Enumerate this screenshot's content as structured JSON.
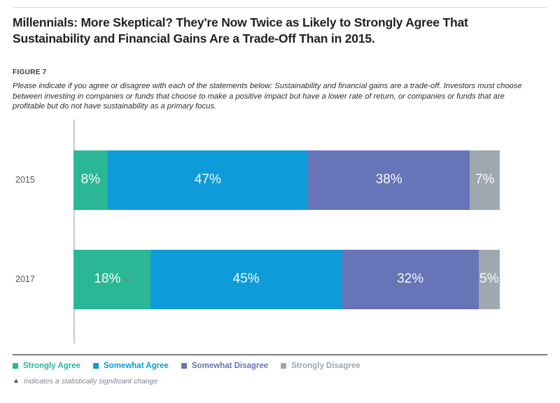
{
  "header": {
    "title": "Millennials: More Skeptical? They're Now Twice as Likely to Strongly Agree That\nSustainability and Financial Gains Are a Trade-Off Than in 2015.",
    "figure_label": "FIGURE 7",
    "caption": "Please indicate if you agree or disagree with each of the statements below: Sustainability and financial gains are a trade-off. Investors must choose\nbetween investing in companies or funds that choose to make a positive impact but have a lower rate of return, or companies or funds that are\nprofitable but do not have sustainability as a primary focus."
  },
  "chart_data": {
    "type": "bar",
    "stacked": true,
    "orientation": "horizontal",
    "categories": [
      "2015",
      "2017"
    ],
    "series": [
      {
        "name": "Strongly Agree",
        "color": "#2ab795",
        "values": [
          8,
          18
        ]
      },
      {
        "name": "Somewhat Agree",
        "color": "#0d9cd9",
        "values": [
          47,
          45
        ]
      },
      {
        "name": "Somewhat Disagree",
        "color": "#6674b8",
        "values": [
          38,
          32
        ]
      },
      {
        "name": "Strongly Disagree",
        "color": "#9fa8b0",
        "values": [
          7,
          5
        ]
      }
    ],
    "value_suffix": "%",
    "xlim": [
      0,
      100
    ],
    "grid": false,
    "legend_position": "bottom",
    "significant_markers": [
      {
        "category": "2017",
        "series": "Strongly Agree"
      }
    ],
    "marker_color": "#8b7d7b",
    "axis_line_color": "#c9c9c9"
  },
  "legend": {
    "items": [
      {
        "label": "Strongly Agree",
        "color": "#2ab795"
      },
      {
        "label": "Somewhat Agree",
        "color": "#0d9cd9"
      },
      {
        "label": "Somewhat Disagree",
        "color": "#6674b8"
      },
      {
        "label": "Strongly Disagree",
        "color": "#9fa8b0"
      }
    ]
  },
  "footnote": {
    "marker": "▲",
    "text": "Indicates a statistically significant change"
  }
}
